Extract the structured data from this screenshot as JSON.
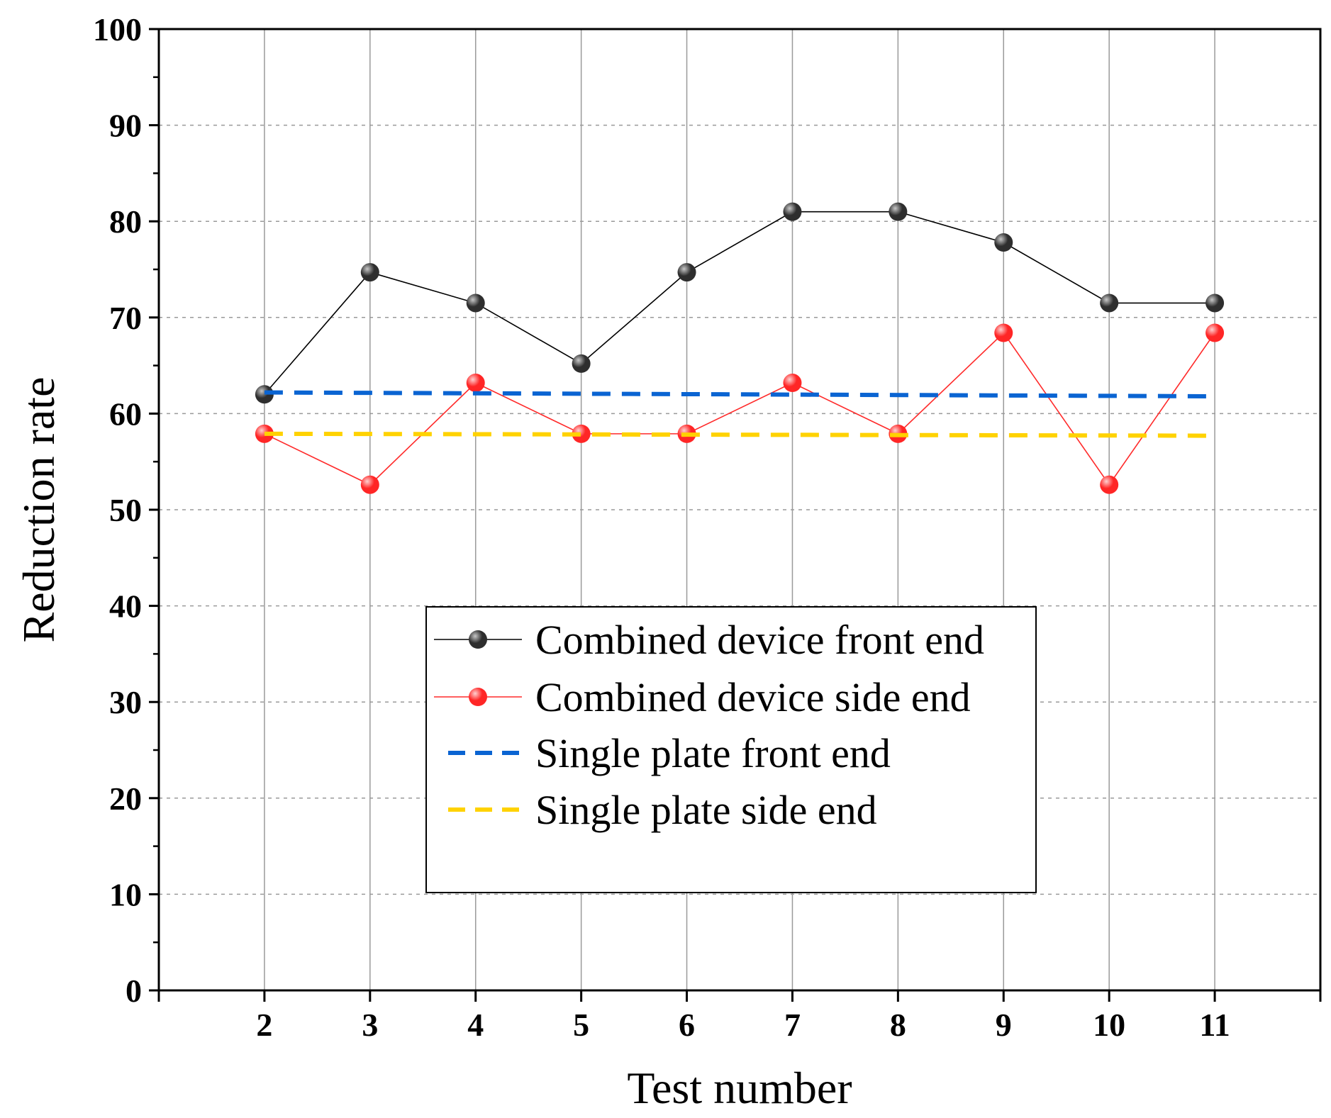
{
  "chart_data": {
    "type": "line",
    "xlabel": "Test number",
    "ylabel": "Reduction rate",
    "xlim": [
      1,
      12
    ],
    "ylim": [
      0,
      100
    ],
    "x_ticks": [
      2,
      3,
      4,
      5,
      6,
      7,
      8,
      9,
      10,
      11
    ],
    "y_ticks": [
      0,
      10,
      20,
      30,
      40,
      50,
      60,
      70,
      80,
      90,
      100
    ],
    "grid": {
      "vertical": "solid",
      "horizontal": "dashed"
    },
    "legend_position": "center",
    "series": [
      {
        "name": "Combined device front end",
        "style": "line-marker",
        "color": "#000000",
        "marker_color": "#333333",
        "x": [
          2,
          3,
          4,
          5,
          6,
          7,
          8,
          9,
          10,
          11
        ],
        "values": [
          62.0,
          74.7,
          71.5,
          65.2,
          74.7,
          81.0,
          81.0,
          77.8,
          71.5,
          71.5
        ]
      },
      {
        "name": "Combined device side end",
        "style": "line-marker",
        "color": "#ff2a2a",
        "marker_color": "#ff3030",
        "x": [
          2,
          3,
          4,
          5,
          6,
          7,
          8,
          9,
          10,
          11
        ],
        "values": [
          57.9,
          52.6,
          63.2,
          57.9,
          57.9,
          63.2,
          57.9,
          68.4,
          52.6,
          68.4
        ]
      },
      {
        "name": "Single plate front end",
        "style": "dashed",
        "color": "#0a64d2",
        "x": [
          2,
          11
        ],
        "values": [
          62.2,
          61.8
        ]
      },
      {
        "name": "Single plate side end",
        "style": "dashed",
        "color": "#ffd200",
        "x": [
          2,
          11
        ],
        "values": [
          57.9,
          57.7
        ]
      }
    ]
  }
}
